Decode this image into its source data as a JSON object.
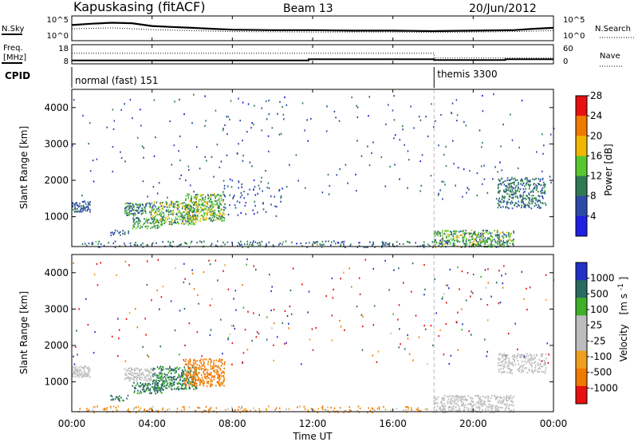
{
  "header": {
    "title": "Kapuskasing (fitACF)",
    "beam": "Beam 13",
    "date": "20/Jun/2012"
  },
  "top_panels": {
    "nsky_label": "N.Sky",
    "nsearch_label": "N.Search",
    "noise_left_ticks": [
      "10^5",
      "10^0"
    ],
    "noise_right_ticks": [
      "10^5",
      "10^0"
    ],
    "freq_label": "Freq.",
    "freq_unit": "[MHz]",
    "freq_ticks": [
      "18",
      "8"
    ],
    "nave_label": "Nave",
    "nave_ticks": [
      "60",
      "0"
    ],
    "cpid_label": "CPID",
    "cpid_segments": [
      {
        "label": "normal (fast) 151",
        "start_hour": 0
      },
      {
        "label": "themis 3300",
        "start_hour": 18.05
      }
    ]
  },
  "x_axis": {
    "label": "Time UT",
    "ticks": [
      "00:00",
      "04:00",
      "08:00",
      "12:00",
      "16:00",
      "20:00",
      "00:00"
    ],
    "range_hours": [
      0,
      24
    ]
  },
  "power_panel": {
    "ylabel": "Slant Range [km]",
    "yticks": [
      "1000",
      "2000",
      "3000",
      "4000"
    ],
    "colorbar_label": "Power [dB]",
    "colorbar_ticks": [
      "4",
      "8",
      "12",
      "16",
      "20",
      "24",
      "28"
    ]
  },
  "velocity_panel": {
    "ylabel": "Slant Range [km]",
    "yticks": [
      "1000",
      "2000",
      "3000",
      "4000"
    ],
    "colorbar_label": "Velocity",
    "colorbar_unit": "[m s",
    "colorbar_unit_sup": "-1",
    "colorbar_unit_end": "]",
    "colorbar_ticks": [
      "1000",
      "500",
      "100",
      "25",
      "-25",
      "-100",
      "-500",
      "-1000"
    ]
  },
  "chart_data": {
    "type": "heatmap",
    "title": "Kapuskasing (fitACF)",
    "x_label": "Time UT",
    "x_unit": "hours",
    "x_range": [
      0,
      24
    ],
    "y_label": "Slant Range [km]",
    "y_range": [
      180,
      4500
    ],
    "colors": {
      "power": [
        "#1f1fe6",
        "#2e4aa8",
        "#2f7a55",
        "#58c830",
        "#f2b800",
        "#f07a00",
        "#e81010"
      ],
      "velocity": [
        "#2032c8",
        "#2a6a60",
        "#3db028",
        "#bdbdbd",
        "#bdbdbd",
        "#f0a020",
        "#f07a00",
        "#e81010"
      ]
    },
    "power_scale_dB": [
      0,
      32
    ],
    "velocity_bins_ms": [
      1000,
      500,
      100,
      25,
      -25,
      -100,
      -500,
      -1000
    ],
    "cpid_change_hour": 18.05,
    "noise_sky": [
      [
        0,
        3.2
      ],
      [
        1,
        3.5
      ],
      [
        2,
        3.7
      ],
      [
        3,
        3.6
      ],
      [
        4,
        3.0
      ],
      [
        5,
        2.8
      ],
      [
        6,
        2.6
      ],
      [
        7,
        2.4
      ],
      [
        8,
        2.2
      ],
      [
        10,
        2.1
      ],
      [
        12,
        2.1
      ],
      [
        14,
        2.0
      ],
      [
        16,
        2.0
      ],
      [
        18,
        1.9
      ],
      [
        20,
        2.0
      ],
      [
        22,
        2.1
      ],
      [
        23,
        2.4
      ],
      [
        24,
        2.6
      ]
    ],
    "noise_search": [
      [
        0,
        2.4
      ],
      [
        2,
        2.6
      ],
      [
        4,
        2.2
      ],
      [
        6,
        2.0
      ],
      [
        8,
        1.8
      ],
      [
        12,
        1.7
      ],
      [
        16,
        1.7
      ],
      [
        18,
        1.6
      ],
      [
        20,
        1.7
      ],
      [
        22,
        1.8
      ],
      [
        24,
        2.0
      ]
    ],
    "freq_mhz": [
      [
        0,
        9.5
      ],
      [
        11.8,
        9.5
      ],
      [
        11.8,
        10.3
      ],
      [
        18.05,
        10.3
      ],
      [
        18.05,
        9.8
      ],
      [
        21.6,
        9.8
      ],
      [
        21.6,
        10.3
      ],
      [
        24,
        10.3
      ]
    ],
    "nave": [
      [
        0,
        35
      ],
      [
        18.05,
        35
      ],
      [
        18.05,
        18
      ],
      [
        24,
        18
      ]
    ],
    "power_regions": [
      {
        "t": [
          0.0,
          0.9
        ],
        "r": [
          1150,
          1450
        ],
        "p": [
          6,
          12
        ],
        "density": 0.75
      },
      {
        "t": [
          2.6,
          4.0
        ],
        "r": [
          1050,
          1400
        ],
        "p": [
          6,
          16
        ],
        "density": 0.6
      },
      {
        "t": [
          3.0,
          4.5
        ],
        "r": [
          700,
          1000
        ],
        "p": [
          8,
          18
        ],
        "density": 0.55
      },
      {
        "t": [
          4.0,
          6.2
        ],
        "r": [
          800,
          1450
        ],
        "p": [
          8,
          20
        ],
        "density": 0.5
      },
      {
        "t": [
          5.6,
          7.6
        ],
        "r": [
          900,
          1650
        ],
        "p": [
          10,
          22
        ],
        "density": 0.5
      },
      {
        "t": [
          1.9,
          2.8
        ],
        "r": [
          500,
          650
        ],
        "p": [
          6,
          12
        ],
        "density": 0.4
      },
      {
        "t": [
          0.3,
          18
        ],
        "r": [
          180,
          350
        ],
        "p": [
          4,
          14
        ],
        "density": 0.18
      },
      {
        "t": [
          7.5,
          10.5
        ],
        "r": [
          1000,
          2100
        ],
        "p": [
          4,
          10
        ],
        "density": 0.05
      },
      {
        "t": [
          18.0,
          22.0
        ],
        "r": [
          180,
          650
        ],
        "p": [
          8,
          20
        ],
        "density": 0.5
      },
      {
        "t": [
          21.2,
          23.6
        ],
        "r": [
          1250,
          2100
        ],
        "p": [
          6,
          14
        ],
        "density": 0.4
      },
      {
        "t": [
          0,
          24
        ],
        "r": [
          1500,
          4400
        ],
        "p": [
          4,
          12
        ],
        "density": 0.012
      }
    ],
    "velocity_regions": [
      {
        "t": [
          0.0,
          0.9
        ],
        "r": [
          1150,
          1450
        ],
        "v": [
          -25,
          25
        ],
        "density": 0.75
      },
      {
        "t": [
          2.6,
          4.0
        ],
        "r": [
          1050,
          1400
        ],
        "v": [
          -25,
          25
        ],
        "density": 0.6
      },
      {
        "t": [
          3.0,
          4.5
        ],
        "r": [
          700,
          1000
        ],
        "v": [
          25,
          300
        ],
        "density": 0.55
      },
      {
        "t": [
          4.0,
          6.2
        ],
        "r": [
          800,
          1450
        ],
        "v": [
          25,
          300
        ],
        "density": 0.5
      },
      {
        "t": [
          5.6,
          7.6
        ],
        "r": [
          900,
          1650
        ],
        "v": [
          -300,
          -80
        ],
        "density": 0.5
      },
      {
        "t": [
          1.9,
          2.8
        ],
        "r": [
          500,
          650
        ],
        "v": [
          50,
          300
        ],
        "density": 0.4
      },
      {
        "t": [
          0.3,
          18
        ],
        "r": [
          180,
          350
        ],
        "v": [
          -300,
          25
        ],
        "density": 0.15
      },
      {
        "t": [
          18.0,
          22.0
        ],
        "r": [
          180,
          650
        ],
        "v": [
          -25,
          25
        ],
        "density": 0.45
      },
      {
        "t": [
          21.2,
          23.6
        ],
        "r": [
          1250,
          1800
        ],
        "v": [
          -25,
          25
        ],
        "density": 0.4
      },
      {
        "t": [
          0,
          24
        ],
        "r": [
          1500,
          4400
        ],
        "v": [
          -1000,
          1000
        ],
        "density": 0.012
      }
    ]
  }
}
